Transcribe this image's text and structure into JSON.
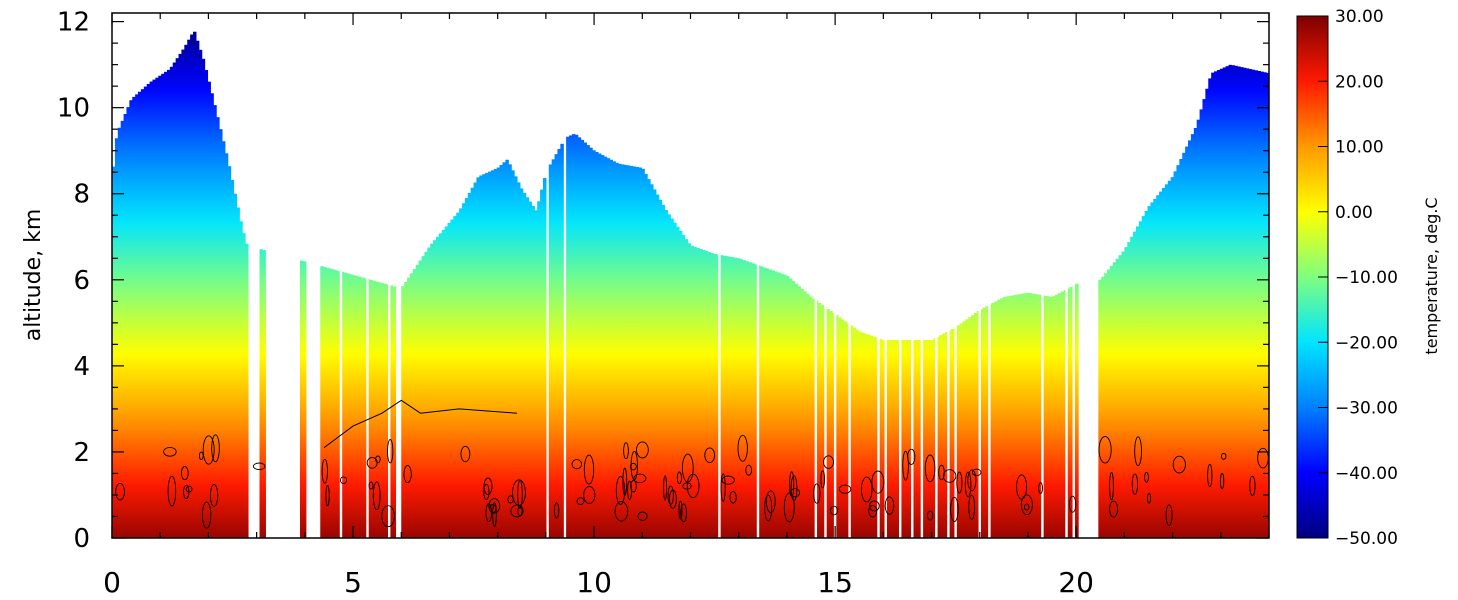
{
  "chart_data": {
    "type": "heatmap",
    "title": "",
    "xlabel": "",
    "ylabel": "altitude,  km",
    "xlim": [
      0,
      24
    ],
    "ylim": [
      0,
      12.2
    ],
    "x_ticks": [
      0,
      5,
      10,
      15,
      20
    ],
    "y_ticks": [
      0,
      2,
      4,
      6,
      8,
      10,
      12
    ],
    "colorbar": {
      "label": "temperature,  deg.C",
      "min": -50,
      "max": 30,
      "ticks": [
        "30.00",
        "20.00",
        "10.00",
        "0.00",
        "−10.00",
        "−20.00",
        "−30.00",
        "−40.00",
        "−50.00"
      ],
      "tick_values": [
        30,
        20,
        10,
        0,
        -10,
        -20,
        -30,
        -40,
        -50
      ]
    },
    "field": {
      "surface_temperature_c": 28,
      "lapse_rate_c_per_km": 6.5,
      "description_of_coverage": "measured temperature up to a time-varying top altitude"
    },
    "coverage_top_km": {
      "x": [
        0.0,
        0.1,
        0.4,
        0.8,
        1.2,
        1.5,
        1.7,
        1.9,
        2.1,
        2.4,
        2.7,
        2.8,
        6.0,
        6.6,
        7.2,
        7.6,
        8.0,
        8.2,
        8.5,
        8.8,
        9.0,
        9.4,
        9.6,
        10.0,
        10.5,
        11.0,
        11.5,
        12.0,
        12.5,
        13.0,
        13.5,
        14.0,
        14.5,
        15.0,
        15.5,
        16.0,
        16.5,
        17.0,
        17.5,
        18.0,
        18.5,
        19.0,
        19.5,
        20.0,
        20.1,
        20.5,
        21.0,
        21.5,
        22.0,
        22.5,
        22.8,
        23.2,
        23.6,
        24.0
      ],
      "y": [
        8.3,
        9.4,
        10.2,
        10.6,
        10.9,
        11.4,
        11.8,
        11.1,
        10.2,
        8.8,
        7.2,
        6.8,
        5.8,
        6.8,
        7.6,
        8.4,
        8.6,
        8.8,
        8.1,
        7.6,
        8.5,
        9.3,
        9.4,
        9.0,
        8.7,
        8.6,
        7.6,
        6.8,
        6.6,
        6.5,
        6.3,
        6.1,
        5.6,
        5.2,
        4.8,
        4.6,
        4.6,
        4.6,
        4.9,
        5.3,
        5.6,
        5.7,
        5.6,
        5.9,
        6.0,
        6.0,
        6.7,
        7.7,
        8.4,
        9.6,
        10.8,
        11.0,
        10.9,
        10.8
      ]
    },
    "data_gaps_hours": [
      [
        2.8,
        3.05
      ],
      [
        3.2,
        3.9
      ],
      [
        4.0,
        4.35
      ],
      [
        5.9,
        6.0
      ],
      [
        9.0,
        9.05
      ],
      [
        9.35,
        9.4
      ],
      [
        9.75,
        9.8
      ],
      [
        20.05,
        20.45
      ]
    ],
    "thin_gaps_hours": [
      4.75,
      5.3,
      5.75,
      12.6,
      13.4,
      14.6,
      14.8,
      15.0,
      15.3,
      15.9,
      16.05,
      16.35,
      16.6,
      16.8,
      17.1,
      17.35,
      17.5,
      18.0,
      18.2,
      19.3,
      19.8,
      19.95
    ],
    "isolated_columns": [
      {
        "x": 3.15,
        "top": 5.5
      },
      {
        "x": 3.95,
        "top": 2.2
      }
    ]
  }
}
